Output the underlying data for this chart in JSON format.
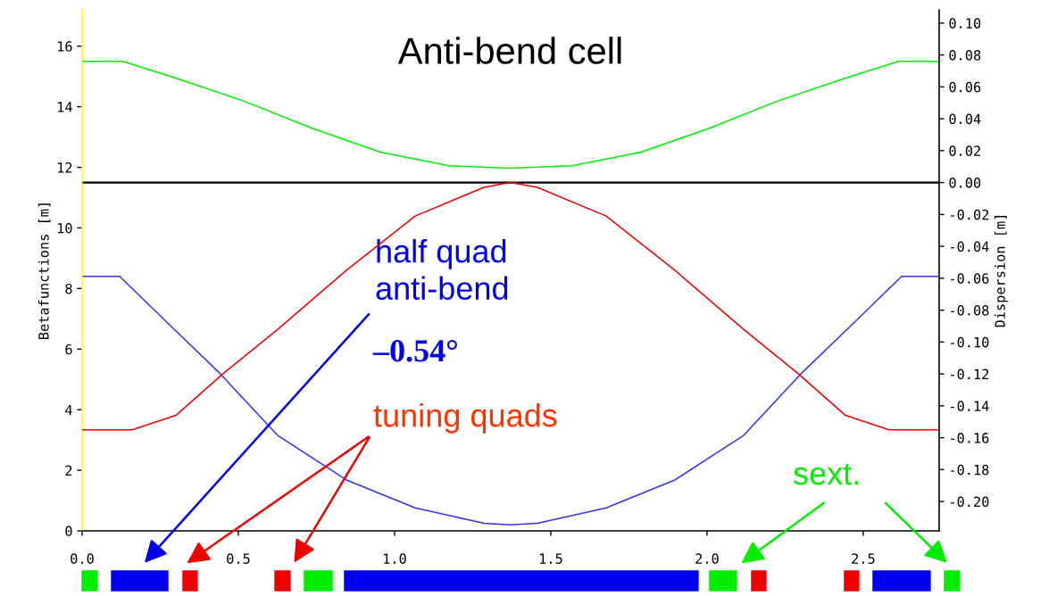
{
  "chart_data": {
    "type": "line",
    "title": "Anti-bend cell",
    "ylabel": "Betafunctions [m]",
    "y2label": "Dispersion [m]",
    "annotations": [
      "half quad\nanti-bend",
      "–0.54°",
      "tuning quads",
      "sext."
    ],
    "xlim": [
      0,
      2.743
    ],
    "ylim": [
      0,
      17.2
    ],
    "y2lim": [
      -0.2184,
      0.1083
    ],
    "xticks": [
      {
        "value": 0,
        "label": "0.0"
      },
      {
        "value": 0.5,
        "label": "0.5"
      },
      {
        "value": 1.0,
        "label": "1.0"
      },
      {
        "value": 1.5,
        "label": "1.5"
      },
      {
        "value": 2.0,
        "label": "2.0"
      },
      {
        "value": 2.5,
        "label": "2.5"
      }
    ],
    "yticks": [
      0,
      2,
      4,
      6,
      8,
      10,
      12,
      14,
      16
    ],
    "y2ticks": [
      {
        "value": -0.2,
        "label": "-0.20"
      },
      {
        "value": -0.18,
        "label": "-0.18"
      },
      {
        "value": -0.16,
        "label": "-0.16"
      },
      {
        "value": -0.14,
        "label": "-0.14"
      },
      {
        "value": -0.12,
        "label": "-0.12"
      },
      {
        "value": -0.1,
        "label": "-0.10"
      },
      {
        "value": -0.08,
        "label": "-0.08"
      },
      {
        "value": -0.06,
        "label": "-0.06"
      },
      {
        "value": -0.04,
        "label": "-0.04"
      },
      {
        "value": -0.02,
        "label": "-0.02"
      },
      {
        "value": 0,
        "label": "0.00"
      },
      {
        "value": 0.02,
        "label": "0.02"
      },
      {
        "value": 0.04,
        "label": "0.04"
      },
      {
        "value": 0.06,
        "label": "0.06"
      },
      {
        "value": 0.08,
        "label": "0.08"
      },
      {
        "value": 0.1,
        "label": "0.10"
      }
    ],
    "grid": false,
    "ref_lines": [
      {
        "axis": "y2",
        "value": 0,
        "color": "#000000"
      }
    ],
    "series": [
      {
        "color": "#00ee00",
        "x": [
          0,
          0.13,
          0.295,
          0.514,
          0.734,
          0.954,
          1.174,
          1.37,
          1.569,
          1.789,
          2.009,
          2.229,
          2.448,
          2.613,
          2.743
        ],
        "values": [
          15.5,
          15.5,
          14.96,
          14.2,
          13.3,
          12.5,
          12.05,
          11.97,
          12.05,
          12.5,
          13.3,
          14.2,
          14.96,
          15.5,
          15.5
        ]
      },
      {
        "color": "#ee0000",
        "axis": "y2",
        "x": [
          0,
          0.16,
          0.3,
          0.45,
          0.626,
          0.846,
          1.066,
          1.286,
          1.37,
          1.457,
          1.677,
          1.897,
          2.117,
          2.293,
          2.443,
          2.583,
          2.743
        ],
        "values": [
          -0.155,
          -0.155,
          -0.146,
          -0.12,
          -0.092,
          -0.055,
          -0.021,
          -0.003,
          0,
          -0.003,
          -0.021,
          -0.055,
          -0.092,
          -0.12,
          -0.146,
          -0.155,
          -0.155
        ]
      },
      {
        "color": "#3333ee",
        "x": [
          0,
          0.12,
          0.295,
          0.437,
          0.626,
          0.846,
          1.066,
          1.286,
          1.37,
          1.457,
          1.677,
          1.897,
          2.117,
          2.306,
          2.448,
          2.623,
          2.743
        ],
        "values": [
          8.4,
          8.4,
          6.65,
          5.24,
          3.15,
          1.68,
          0.76,
          0.25,
          0.2,
          0.25,
          0.76,
          1.68,
          3.15,
          5.24,
          6.65,
          8.4,
          8.4
        ]
      }
    ]
  }
}
